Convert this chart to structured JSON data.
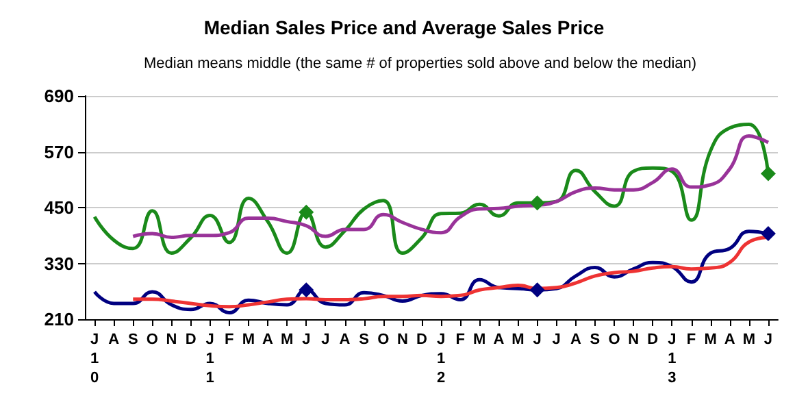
{
  "chart_data": {
    "type": "line",
    "title": "Median Sales Price and Average Sales Price",
    "subtitle": "Median means middle (the same # of properties sold above and below the median)",
    "categories": [
      "J\n1\n0",
      "A",
      "S",
      "O",
      "N",
      "D",
      "J\n1\n1",
      "F",
      "M",
      "A",
      "M",
      "J",
      "J",
      "A",
      "S",
      "O",
      "N",
      "D",
      "J\n1\n2",
      "F",
      "M",
      "A",
      "M",
      "J",
      "J",
      "A",
      "S",
      "O",
      "N",
      "D",
      "J\n1\n3",
      "F",
      "M",
      "A",
      "M",
      "J"
    ],
    "series": [
      {
        "color": "#1a8a1a",
        "values": [
          430,
          380,
          362,
          443,
          352,
          385,
          433,
          375,
          470,
          420,
          352,
          440,
          365,
          400,
          447,
          465,
          352,
          385,
          437,
          438,
          457,
          432,
          460,
          460,
          463,
          530,
          484,
          453,
          528,
          535,
          528,
          423,
          572,
          621,
          629,
          523
        ]
      },
      {
        "color": "#993399",
        "values": [
          null,
          null,
          388,
          394,
          386,
          390,
          390,
          396,
          427,
          427,
          420,
          411,
          388,
          403,
          403,
          435,
          418,
          403,
          396,
          430,
          447,
          448,
          453,
          455,
          463,
          484,
          492,
          488,
          488,
          504,
          533,
          494,
          499,
          533,
          604,
          590
        ]
      },
      {
        "color": "#000080",
        "values": [
          269,
          244,
          244,
          269,
          241,
          231,
          244,
          224,
          251,
          244,
          241,
          273,
          244,
          241,
          267,
          261,
          249,
          261,
          265,
          252,
          295,
          278,
          276,
          273,
          276,
          303,
          321,
          301,
          318,
          332,
          323,
          290,
          352,
          362,
          399,
          394
        ]
      },
      {
        "color": "#ee3333",
        "values": [
          null,
          null,
          253,
          253,
          249,
          244,
          239,
          237,
          241,
          247,
          253,
          254,
          252,
          252,
          254,
          259,
          259,
          261,
          259,
          261,
          273,
          278,
          283,
          276,
          278,
          288,
          303,
          310,
          313,
          320,
          323,
          318,
          320,
          332,
          376,
          386
        ]
      },
      {
        "type": "scatter",
        "marker": "diamond",
        "color": "#1a8a1a",
        "values": [
          null,
          null,
          null,
          null,
          null,
          null,
          null,
          null,
          null,
          null,
          null,
          440,
          null,
          null,
          null,
          null,
          null,
          null,
          null,
          null,
          null,
          null,
          null,
          460,
          null,
          null,
          null,
          null,
          null,
          null,
          null,
          null,
          null,
          null,
          null,
          523
        ]
      },
      {
        "type": "scatter",
        "marker": "diamond",
        "color": "#000080",
        "values": [
          null,
          null,
          null,
          null,
          null,
          null,
          null,
          null,
          null,
          null,
          null,
          273,
          null,
          null,
          null,
          null,
          null,
          null,
          null,
          null,
          null,
          null,
          null,
          273,
          null,
          null,
          null,
          null,
          null,
          null,
          null,
          null,
          null,
          null,
          null,
          394
        ]
      }
    ],
    "ylim": [
      210,
      690
    ],
    "yticks": [
      210,
      330,
      450,
      570,
      690
    ],
    "grid": "y",
    "marker": "none"
  }
}
